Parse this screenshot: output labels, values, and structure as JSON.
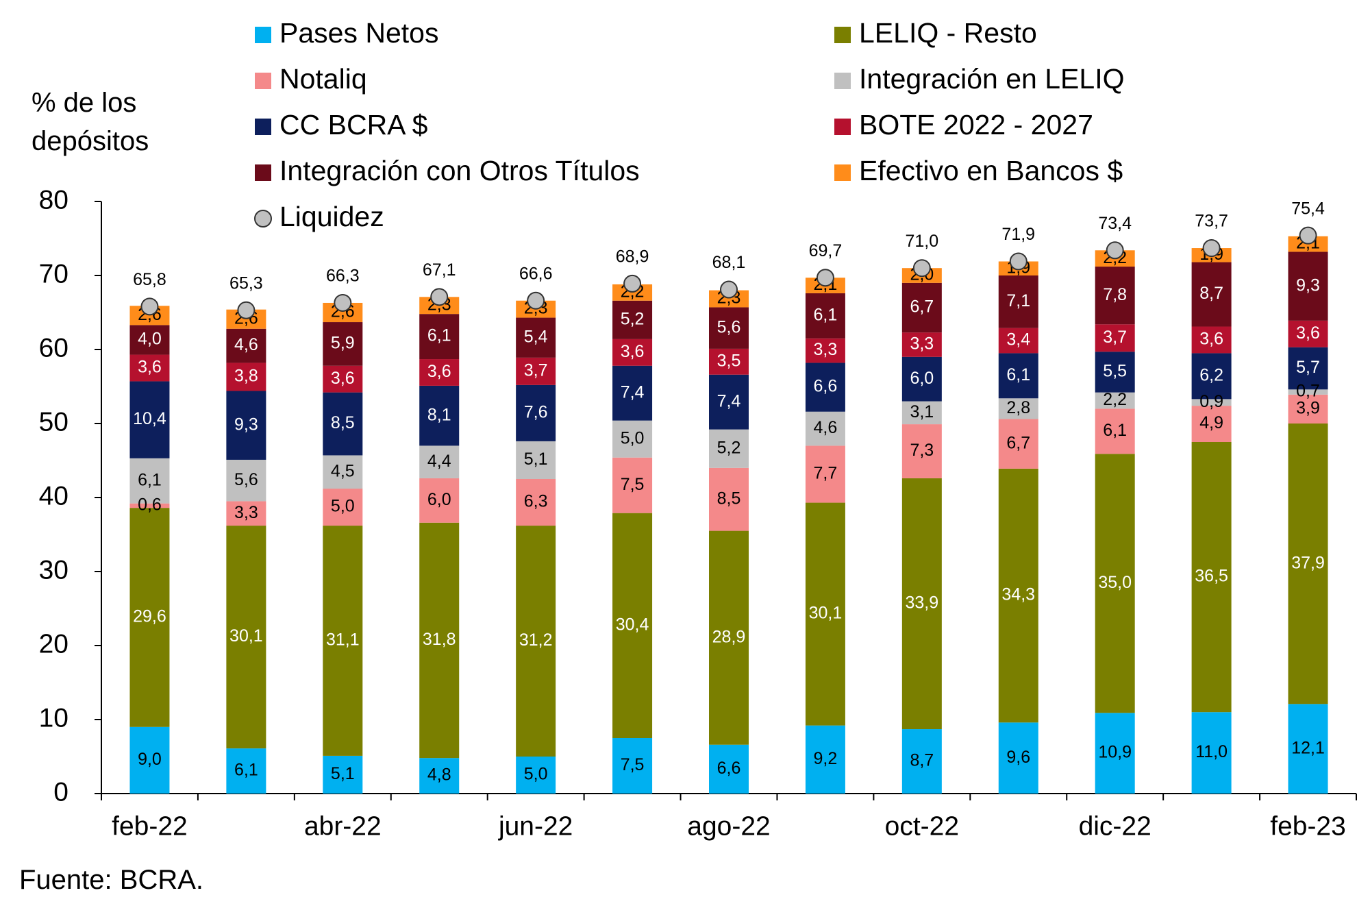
{
  "chart_data": {
    "type": "stacked_bar",
    "y_label": "% de los depósitos",
    "source": "Fuente: BCRA.",
    "categories": [
      "feb-22",
      null,
      "abr-22",
      null,
      "jun-22",
      null,
      "ago-22",
      null,
      "oct-22",
      null,
      "dic-22",
      null,
      "feb-23"
    ],
    "ylim": [
      0,
      80
    ],
    "yticks": [
      0,
      10,
      20,
      30,
      40,
      50,
      60,
      70,
      80
    ],
    "series": [
      {
        "name": "Pases Netos",
        "color": "#00b0f0",
        "values": [
          9.0,
          6.1,
          5.1,
          4.8,
          5.0,
          7.5,
          6.6,
          9.2,
          8.7,
          9.6,
          10.9,
          11.0,
          12.1
        ],
        "value_labels": [
          "9,0",
          "6,1",
          "5,1",
          "4,8",
          "5,0",
          "7,5",
          "6,6",
          "9,2",
          "8,7",
          "9,6",
          "10,9",
          "11,0",
          "12,1"
        ]
      },
      {
        "name": "LELIQ - Resto",
        "color": "#7a7f00",
        "values": [
          29.6,
          30.1,
          31.1,
          31.8,
          31.2,
          30.4,
          28.9,
          30.1,
          33.9,
          34.3,
          35.0,
          36.5,
          37.9
        ],
        "value_labels": [
          "29,6",
          "30,1",
          "31,1",
          "31,8",
          "31,2",
          "30,4",
          "28,9",
          "30,1",
          "33,9",
          "34,3",
          "35,0",
          "36,5",
          "37,9"
        ]
      },
      {
        "name": "Notaliq",
        "color": "#f4898a",
        "values": [
          0.6,
          3.3,
          5.0,
          6.0,
          6.3,
          7.5,
          8.5,
          7.7,
          7.3,
          6.7,
          6.1,
          4.9,
          3.9
        ],
        "value_labels": [
          "0,6",
          "3,3",
          "5,0",
          "6,0",
          "6,3",
          "7,5",
          "8,5",
          "7,7",
          "7,3",
          "6,7",
          "6,1",
          "4,9",
          "3,9"
        ]
      },
      {
        "name": "Integración en LELIQ",
        "color": "#c0c0c0",
        "values": [
          6.1,
          5.6,
          4.5,
          4.4,
          5.1,
          5.0,
          5.2,
          4.6,
          3.1,
          2.8,
          2.2,
          0.9,
          0.7
        ],
        "value_labels": [
          "6,1",
          "5,6",
          "4,5",
          "4,4",
          "5,1",
          "5,0",
          "5,2",
          "4,6",
          "3,1",
          "2,8",
          "2,2",
          "0,9",
          "0,7"
        ]
      },
      {
        "name": "CC BCRA $",
        "color": "#0d1f5c",
        "values": [
          10.4,
          9.3,
          8.5,
          8.1,
          7.6,
          7.4,
          7.4,
          6.6,
          6.0,
          6.1,
          5.5,
          6.2,
          5.7
        ],
        "value_labels": [
          "10,4",
          "9,3",
          "8,5",
          "8,1",
          "7,6",
          "7,4",
          "7,4",
          "6,6",
          "6,0",
          "6,1",
          "5,5",
          "6,2",
          "5,7"
        ]
      },
      {
        "name": "BOTE 2022 - 2027",
        "color": "#b5112e",
        "values": [
          3.6,
          3.8,
          3.6,
          3.6,
          3.7,
          3.6,
          3.5,
          3.3,
          3.3,
          3.4,
          3.7,
          3.6,
          3.6
        ],
        "value_labels": [
          "3,6",
          "3,8",
          "3,6",
          "3,6",
          "3,7",
          "3,6",
          "3,5",
          "3,3",
          "3,3",
          "3,4",
          "3,7",
          "3,6",
          "3,6"
        ]
      },
      {
        "name": "Integración con Otros Títulos",
        "color": "#6b0b1a",
        "values": [
          4.0,
          4.6,
          5.9,
          6.1,
          5.4,
          5.2,
          5.6,
          6.1,
          6.7,
          7.1,
          7.8,
          8.7,
          9.3
        ],
        "value_labels": [
          "4,0",
          "4,6",
          "5,9",
          "6,1",
          "5,4",
          "5,2",
          "5,6",
          "6,1",
          "6,7",
          "7,1",
          "7,8",
          "8,7",
          "9,3"
        ]
      },
      {
        "name": "Efectivo en Bancos $",
        "color": "#ff8c1a",
        "values": [
          2.6,
          2.6,
          2.6,
          2.3,
          2.3,
          2.2,
          2.3,
          2.1,
          2.0,
          1.9,
          2.2,
          1.9,
          2.1
        ],
        "value_labels": [
          "2,6",
          "2,6",
          "2,6",
          "2,3",
          "2,3",
          "2,2",
          "2,3",
          "2,1",
          "2,0",
          "1,9",
          "2,2",
          "1,9",
          "2,1"
        ]
      }
    ],
    "overlay": {
      "name": "Liquidez",
      "color": "#c0c0c0",
      "values": [
        65.8,
        65.3,
        66.3,
        67.1,
        66.6,
        68.9,
        68.1,
        69.7,
        71.0,
        71.9,
        73.4,
        73.7,
        75.4
      ],
      "value_labels": [
        "65,8",
        "65,3",
        "66,3",
        "67,1",
        "66,6",
        "68,9",
        "68,1",
        "69,7",
        "71,0",
        "71,9",
        "73,4",
        "73,7",
        "75,4"
      ]
    }
  }
}
